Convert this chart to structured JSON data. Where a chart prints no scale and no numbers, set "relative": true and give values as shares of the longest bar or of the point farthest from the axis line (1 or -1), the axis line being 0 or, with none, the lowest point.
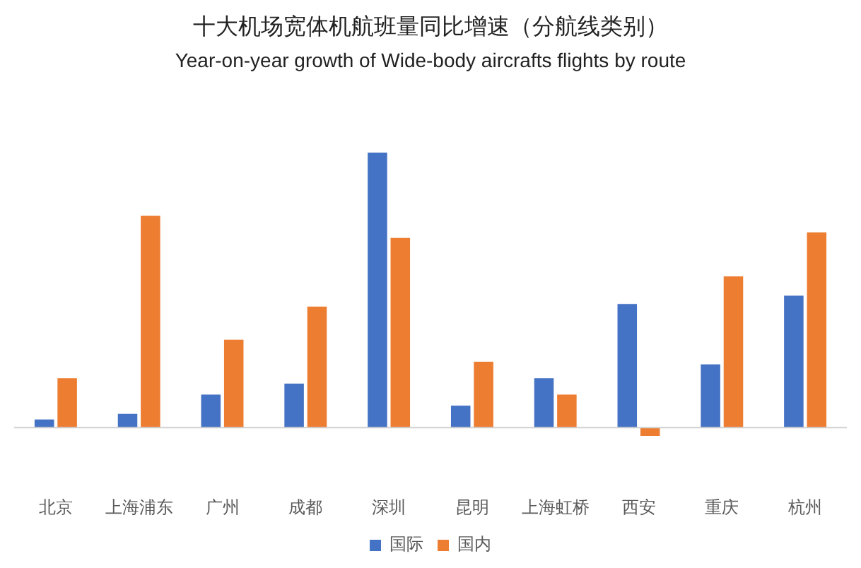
{
  "chart_data": {
    "type": "bar",
    "title": "十大机场宽体机航班量同比增速（分航线类别）",
    "subtitle": "Year-on-year growth of Wide-body aircrafts flights by route",
    "categories": [
      "北京",
      "上海浦东",
      "广州",
      "成都",
      "深圳",
      "昆明",
      "上海虹桥",
      "西安",
      "重庆",
      "杭州"
    ],
    "relative": true,
    "legend": "bottom",
    "series": [
      {
        "name": "国际",
        "color": "#4472c4",
        "values": [
          0.03,
          0.05,
          0.12,
          0.16,
          1,
          0.08,
          0.18,
          0.45,
          0.23,
          0.48
        ]
      },
      {
        "name": "国内",
        "color": "#ed7d31",
        "values": [
          0.18,
          0.77,
          0.32,
          0.44,
          0.69,
          0.24,
          0.12,
          -0.03,
          0.55,
          0.71
        ]
      }
    ]
  }
}
